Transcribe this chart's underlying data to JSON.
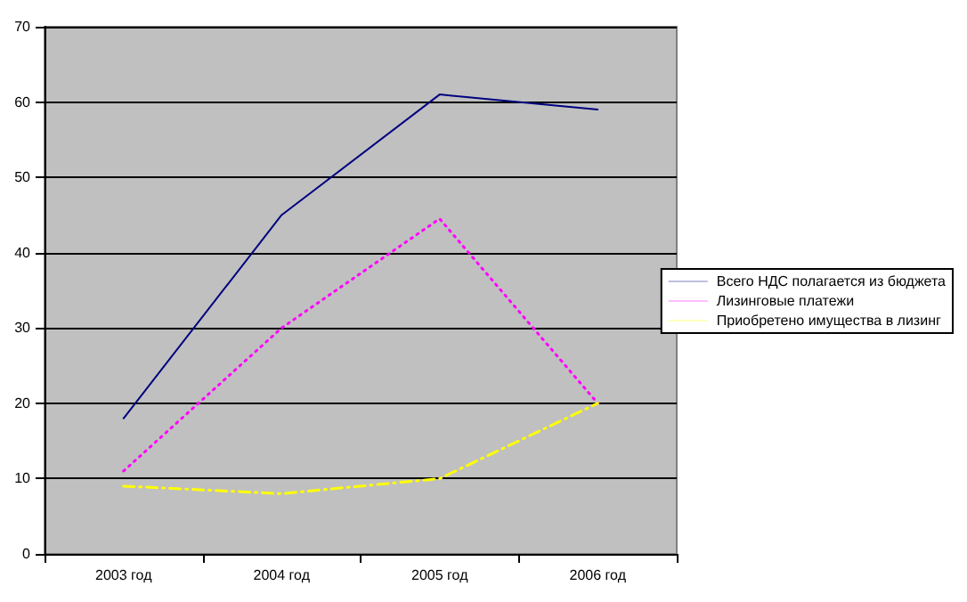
{
  "chart_data": {
    "type": "line",
    "categories": [
      "2003 год",
      "2004 год",
      "2005 год",
      "2006 год"
    ],
    "series": [
      {
        "name": "Всего НДС полагается из бюджета",
        "color": "#000080",
        "values": [
          18,
          45,
          61,
          59
        ],
        "line_style": "solid"
      },
      {
        "name": "Лизинговые платежи",
        "color": "#ff00ff",
        "values": [
          11,
          30,
          44.5,
          20
        ],
        "line_style": "dotted"
      },
      {
        "name": "Приобретено имущества в лизинг",
        "color": "#ffff00",
        "values": [
          9,
          8,
          10,
          20
        ],
        "line_style": "dashed"
      }
    ],
    "ylim": [
      0,
      70
    ],
    "yticks": [
      0,
      10,
      20,
      30,
      40,
      50,
      60,
      70
    ],
    "grid": "y",
    "legend": "right",
    "marker": "none"
  }
}
